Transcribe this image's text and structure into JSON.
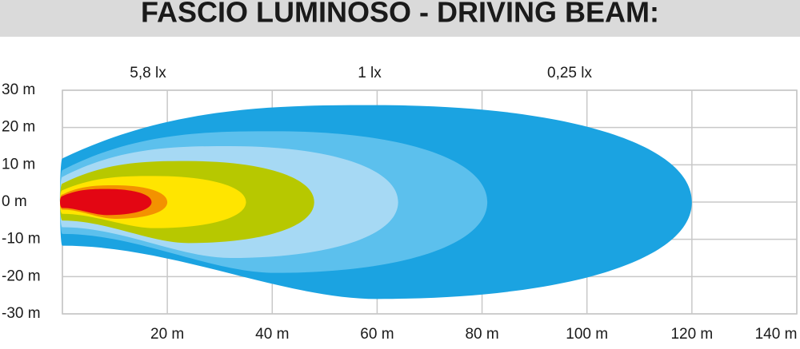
{
  "chart_data": {
    "type": "beam",
    "title": "FASCIO LUMINOSO - DRIVING BEAM:",
    "annotations": [
      "5,8 lx",
      "1 lx",
      "0,25 lx"
    ],
    "xlim": [
      0,
      140
    ],
    "ylim": [
      -30,
      30
    ],
    "xticks": [
      {
        "value": 20,
        "label": "20 m"
      },
      {
        "value": 40,
        "label": "40 m"
      },
      {
        "value": 60,
        "label": "60 m"
      },
      {
        "value": 80,
        "label": "80 m"
      },
      {
        "value": 100,
        "label": "100 m"
      },
      {
        "value": 120,
        "label": "120 m"
      },
      {
        "value": 140,
        "label": "140 m"
      }
    ],
    "yticks": [
      {
        "value": 30,
        "label": "30 m"
      },
      {
        "value": 20,
        "label": "20 m"
      },
      {
        "value": 10,
        "label": "10 m"
      },
      {
        "value": 0,
        "label": "0 m"
      },
      {
        "value": -10,
        "label": "-10 m"
      },
      {
        "value": -20,
        "label": "-20 m"
      },
      {
        "value": -30,
        "label": "-30 m"
      }
    ],
    "grid": true,
    "zones": [
      {
        "color": "#1ba3e1",
        "reach": 120,
        "half_width": 26
      },
      {
        "color": "#5cc0ed",
        "reach": 81,
        "half_width": 19
      },
      {
        "color": "#a6d9f4",
        "reach": 64,
        "half_width": 15
      },
      {
        "color": "#b7c800",
        "reach": 48,
        "half_width": 11
      },
      {
        "color": "#ffe500",
        "reach": 35,
        "half_width": 7
      },
      {
        "color": "#f39200",
        "reach": 20,
        "half_width": 4.5
      },
      {
        "color": "#e30613",
        "reach": 17,
        "half_width": 3.5
      }
    ]
  }
}
